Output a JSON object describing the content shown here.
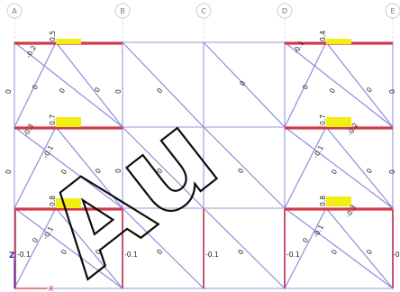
{
  "grid_labels": [
    "A",
    "B",
    "C",
    "D",
    "E"
  ],
  "axis": {
    "z": "Z",
    "x": "X"
  },
  "watermark": "Au",
  "values": {
    "beam_top_left": "0.5",
    "beam_top_right": "0.4",
    "beam_mid_left": "0.7",
    "beam_mid_right": "0.7",
    "beam_bot_left": "0.8",
    "beam_bot_right": "0.8",
    "zero": "0",
    "neg01": "-0.1",
    "neg02": "-0.2",
    "neg03": "-0.3",
    "neg05": "0.5"
  },
  "colors": {
    "member": "#9a96dc",
    "beam": "#d23a4a",
    "highlight": "#f2ee14"
  }
}
